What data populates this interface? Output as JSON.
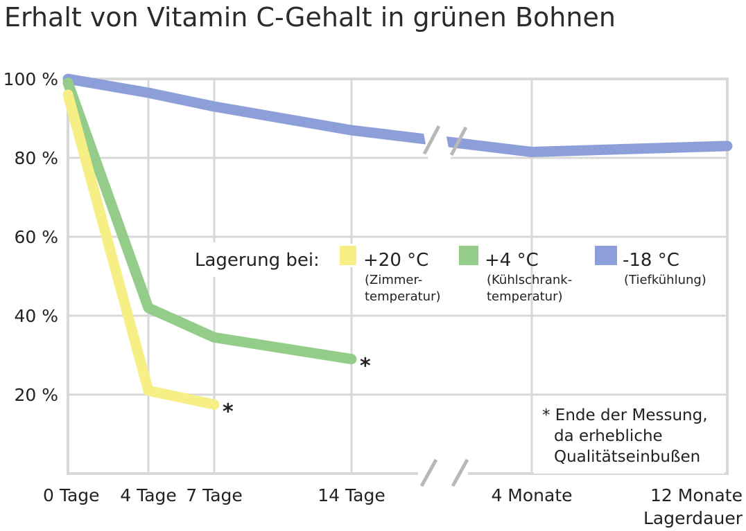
{
  "chart_data": {
    "type": "line",
    "title": "Erhalt von Vitamin C-Gehalt in grünen Bohnen",
    "xlabel": "Lagerdauer",
    "ylabel": "",
    "x_tick_labels": [
      "0 Tage",
      "4 Tage",
      "7 Tage",
      "14 Tage",
      "4 Monate",
      "12 Monate"
    ],
    "y_tick_labels": [
      "100 %",
      "80 %",
      "60 %",
      "40 %",
      "20 %"
    ],
    "y_ticks": [
      100,
      80,
      60,
      40,
      20
    ],
    "ylim": [
      0,
      100
    ],
    "grid": true,
    "axis_break": "between 14 Tage and 4 Monate",
    "legend": {
      "title": "Lagerung bei:",
      "placement": "center-right",
      "entries": [
        {
          "label": "+20 °C",
          "sublabel_1": "(Zimmer-",
          "sublabel_2": "temperatur)",
          "color": "#f6ef85"
        },
        {
          "label": "+4 °C",
          "sublabel_1": "(Kühlschrank-",
          "sublabel_2": "temperatur)",
          "color": "#94cd8a"
        },
        {
          "label": "-18 °C",
          "sublabel_1": "(Tiefkühlung)",
          "sublabel_2": "",
          "color": "#8d9fd8"
        }
      ]
    },
    "series": [
      {
        "name": "+20 °C",
        "color": "#f6ef85",
        "x": [
          "0 Tage",
          "4 Tage",
          "7 Tage"
        ],
        "values": [
          96,
          21,
          17.5
        ],
        "end_marker": "*"
      },
      {
        "name": "+4 °C",
        "color": "#94cd8a",
        "x": [
          "0 Tage",
          "4 Tage",
          "7 Tage",
          "14 Tage"
        ],
        "values": [
          99,
          42,
          34.5,
          29
        ],
        "end_marker": "*"
      },
      {
        "name": "-18 °C",
        "color": "#8d9fd8",
        "x": [
          "0 Tage",
          "4 Tage",
          "7 Tage",
          "14 Tage",
          "4 Monate",
          "12 Monate"
        ],
        "values": [
          100,
          96.5,
          93,
          87,
          81.5,
          83
        ],
        "end_marker": ""
      }
    ],
    "annotation": {
      "line_1": "* Ende der Messung,",
      "line_2": "da erhebliche",
      "line_3": "Qualitätseinbußen"
    }
  }
}
